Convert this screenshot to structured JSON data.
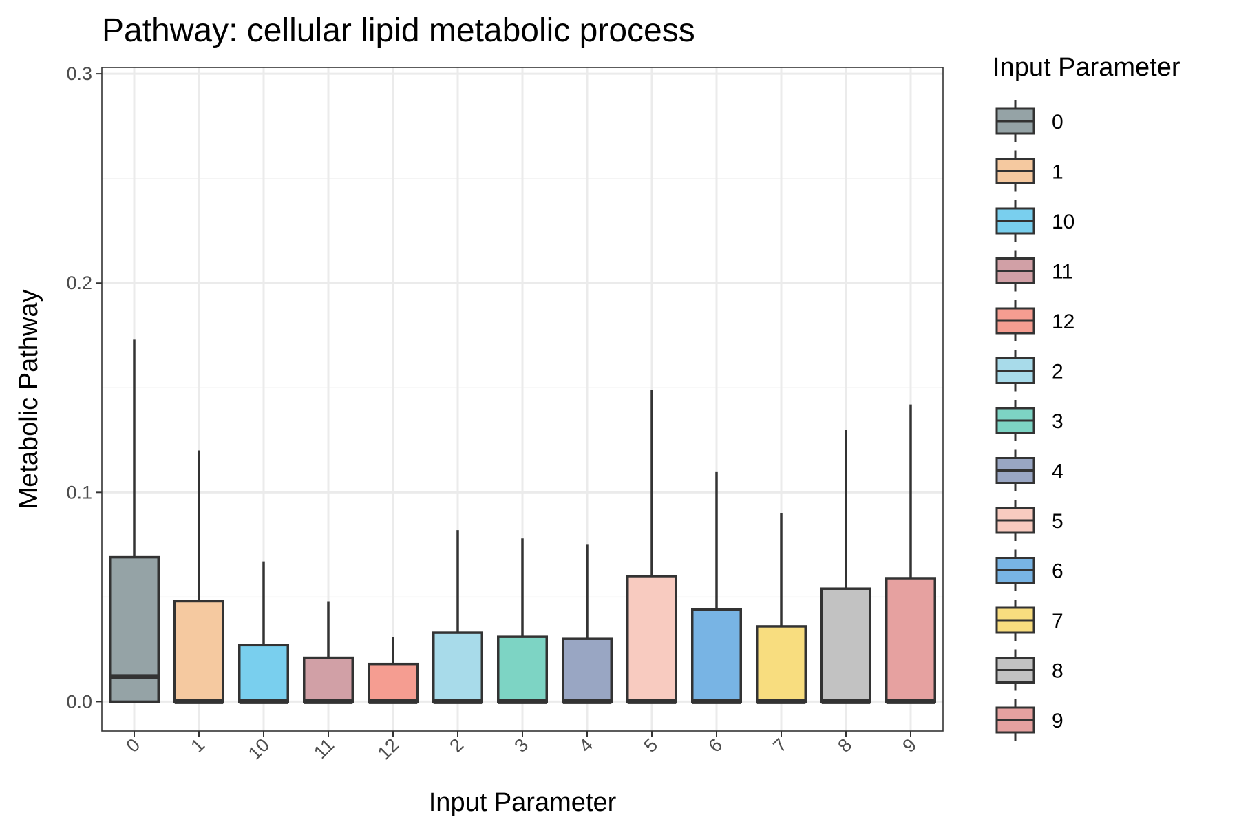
{
  "chart_data": {
    "type": "box",
    "title": "Pathway: cellular lipid metabolic process",
    "xlabel": "Input Parameter",
    "ylabel": "Metabolic Pathway",
    "ylim": [
      -0.014,
      0.303
    ],
    "yticks": [
      0.0,
      0.1,
      0.2,
      0.3
    ],
    "ytick_labels": [
      "0.0",
      "0.1",
      "0.2",
      "0.3"
    ],
    "grid": true,
    "legend": {
      "title": "Input Parameter",
      "position": "right"
    },
    "categories": [
      "0",
      "1",
      "10",
      "11",
      "12",
      "2",
      "3",
      "4",
      "5",
      "6",
      "7",
      "8",
      "9"
    ],
    "colors": [
      "#95a3a6",
      "#f5c9a0",
      "#79cfee",
      "#d1a0a6",
      "#f59d91",
      "#a8dbea",
      "#7dd4c4",
      "#99a6c3",
      "#f8cbc0",
      "#78b4e4",
      "#f8dd7f",
      "#c2c2c2",
      "#e6a1a0"
    ],
    "boxes": [
      {
        "category": "0",
        "lower_whisker": 0.0,
        "q1": 0.0,
        "median": 0.012,
        "q3": 0.069,
        "upper_whisker": 0.173
      },
      {
        "category": "1",
        "lower_whisker": 0.0,
        "q1": 0.0,
        "median": 0.0,
        "q3": 0.048,
        "upper_whisker": 0.12
      },
      {
        "category": "10",
        "lower_whisker": 0.0,
        "q1": 0.0,
        "median": 0.0,
        "q3": 0.027,
        "upper_whisker": 0.067
      },
      {
        "category": "11",
        "lower_whisker": 0.0,
        "q1": 0.0,
        "median": 0.0,
        "q3": 0.021,
        "upper_whisker": 0.048
      },
      {
        "category": "12",
        "lower_whisker": 0.0,
        "q1": 0.0,
        "median": 0.0,
        "q3": 0.018,
        "upper_whisker": 0.031
      },
      {
        "category": "2",
        "lower_whisker": 0.0,
        "q1": 0.0,
        "median": 0.0,
        "q3": 0.033,
        "upper_whisker": 0.082
      },
      {
        "category": "3",
        "lower_whisker": 0.0,
        "q1": 0.0,
        "median": 0.0,
        "q3": 0.031,
        "upper_whisker": 0.078
      },
      {
        "category": "4",
        "lower_whisker": 0.0,
        "q1": 0.0,
        "median": 0.0,
        "q3": 0.03,
        "upper_whisker": 0.075
      },
      {
        "category": "5",
        "lower_whisker": 0.0,
        "q1": 0.0,
        "median": 0.0,
        "q3": 0.06,
        "upper_whisker": 0.149
      },
      {
        "category": "6",
        "lower_whisker": 0.0,
        "q1": 0.0,
        "median": 0.0,
        "q3": 0.044,
        "upper_whisker": 0.11
      },
      {
        "category": "7",
        "lower_whisker": 0.0,
        "q1": 0.0,
        "median": 0.0,
        "q3": 0.036,
        "upper_whisker": 0.09
      },
      {
        "category": "8",
        "lower_whisker": 0.0,
        "q1": 0.0,
        "median": 0.0,
        "q3": 0.054,
        "upper_whisker": 0.13
      },
      {
        "category": "9",
        "lower_whisker": 0.0,
        "q1": 0.0,
        "median": 0.0,
        "q3": 0.059,
        "upper_whisker": 0.142
      }
    ]
  }
}
